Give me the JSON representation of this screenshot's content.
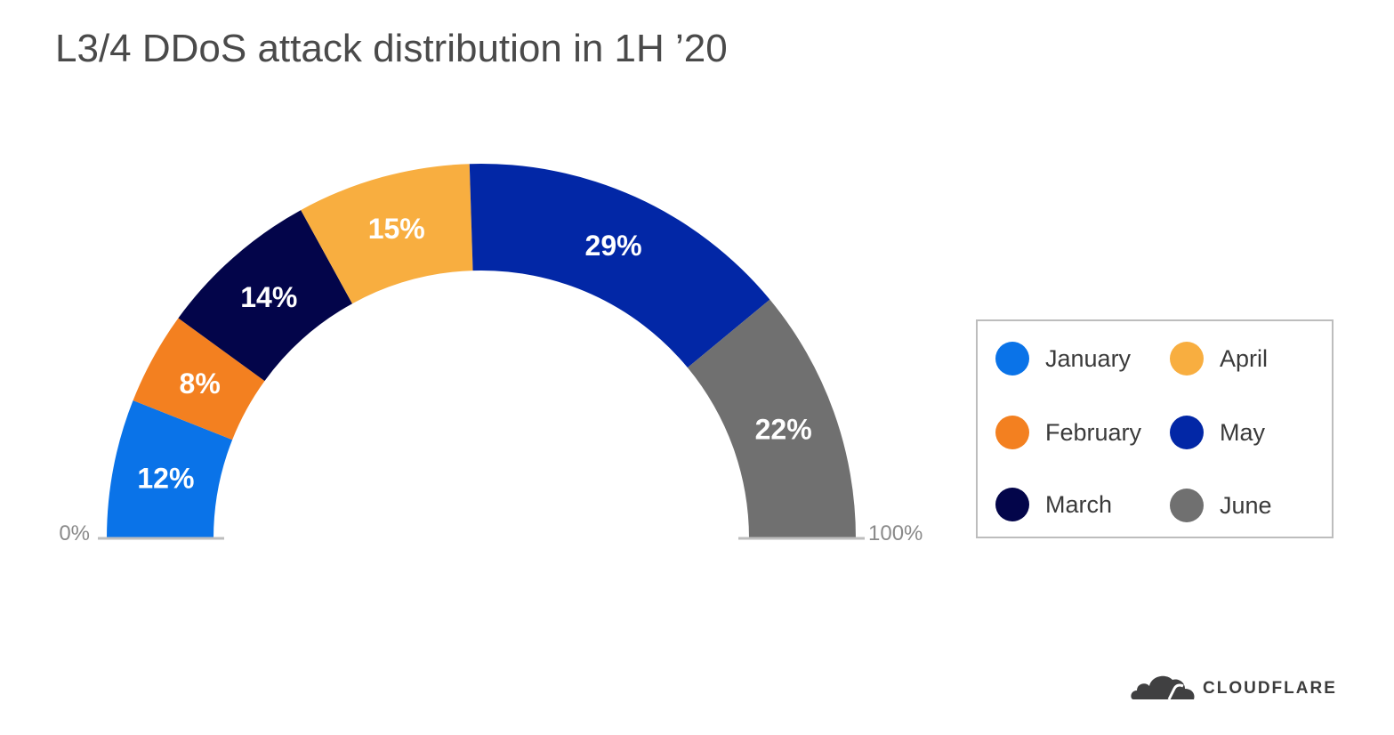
{
  "title": "L3/4 DDoS attack distribution in 1H ’20",
  "chart_data": {
    "type": "pie",
    "variant": "half-donut",
    "title": "L3/4 DDoS attack distribution in 1H ’20",
    "categories": [
      "January",
      "February",
      "March",
      "April",
      "May",
      "June"
    ],
    "values": [
      12,
      8,
      14,
      15,
      29,
      22
    ],
    "value_labels": [
      "12%",
      "8%",
      "14%",
      "15%",
      "29%",
      "22%"
    ],
    "colors": [
      "#0a73e8",
      "#f38020",
      "#03054a",
      "#f8ae40",
      "#0227a6",
      "#707070"
    ],
    "start_label": "0%",
    "end_label": "100%",
    "legend_placement": "right"
  },
  "logo": {
    "text": "CLOUDFLARE"
  }
}
